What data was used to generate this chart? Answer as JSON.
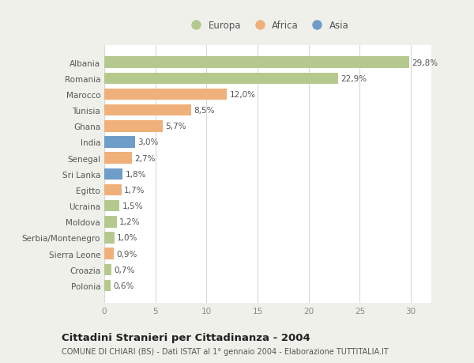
{
  "categories": [
    "Albania",
    "Romania",
    "Marocco",
    "Tunisia",
    "Ghana",
    "India",
    "Senegal",
    "Sri Lanka",
    "Egitto",
    "Ucraina",
    "Moldova",
    "Serbia/Montenegro",
    "Sierra Leone",
    "Croazia",
    "Polonia"
  ],
  "values": [
    29.8,
    22.9,
    12.0,
    8.5,
    5.7,
    3.0,
    2.7,
    1.8,
    1.7,
    1.5,
    1.2,
    1.0,
    0.9,
    0.7,
    0.6
  ],
  "labels": [
    "29,8%",
    "22,9%",
    "12,0%",
    "8,5%",
    "5,7%",
    "3,0%",
    "2,7%",
    "1,8%",
    "1,7%",
    "1,5%",
    "1,2%",
    "1,0%",
    "0,9%",
    "0,7%",
    "0,6%"
  ],
  "continents": [
    "Europa",
    "Europa",
    "Africa",
    "Africa",
    "Africa",
    "Asia",
    "Africa",
    "Asia",
    "Africa",
    "Europa",
    "Europa",
    "Europa",
    "Africa",
    "Europa",
    "Europa"
  ],
  "colors": {
    "Europa": "#b5c98e",
    "Africa": "#f0b07a",
    "Asia": "#6e9dc9"
  },
  "xlim": [
    0,
    32
  ],
  "xticks": [
    0,
    5,
    10,
    15,
    20,
    25,
    30
  ],
  "title": "Cittadini Stranieri per Cittadinanza - 2004",
  "subtitle": "COMUNE DI CHIARI (BS) - Dati ISTAT al 1° gennaio 2004 - Elaborazione TUTTITALIA.IT",
  "background_color": "#f0f0eb",
  "plot_bg_color": "#ffffff",
  "grid_color": "#d8d8d8",
  "bar_height": 0.72,
  "label_fontsize": 7.5,
  "tick_fontsize": 7.5,
  "ytick_fontsize": 7.5,
  "title_fontsize": 9.5,
  "subtitle_fontsize": 7.0,
  "legend_fontsize": 8.5
}
